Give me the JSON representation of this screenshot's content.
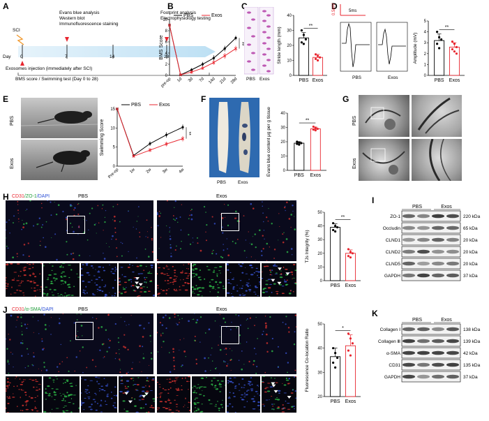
{
  "panels": {
    "A": {
      "letter": "A",
      "sci": "SCI",
      "day_label": "Day",
      "days": [
        "0",
        "7",
        "14",
        "28"
      ],
      "events_day7": [
        "Evans blue analysis",
        "Western blot",
        "Immunofluorescence staining"
      ],
      "events_day28": [
        "Footprint analysis",
        "Electrophysiology testing"
      ],
      "injection": "Exosomes injection (immediately after SCI)",
      "tests": "BMS score / Swimming test (Day 0 to 28)"
    },
    "B": {
      "letter": "B",
      "sig": "**"
    },
    "C": {
      "letter": "C",
      "sig": "**",
      "prints": [
        "PBS",
        "Exos"
      ]
    },
    "D": {
      "letter": "D",
      "sig": "**",
      "scale_v": "0.5mV",
      "scale_t": "5ms",
      "traces": [
        "PBS",
        "Exos"
      ]
    },
    "E": {
      "letter": "E",
      "sig": "**",
      "rows": [
        "PBS",
        "Exos"
      ]
    },
    "F": {
      "letter": "F",
      "sig": "**",
      "cords": [
        "PBS",
        "Exos"
      ]
    },
    "G": {
      "letter": "G",
      "rows": [
        "PBS",
        "Exos"
      ]
    },
    "H": {
      "letter": "H",
      "stain": {
        "a": "CD31",
        "b": "/ZO-1",
        "c": "/DAPI"
      },
      "groups": [
        "PBS",
        "Exos"
      ],
      "sig": "**"
    },
    "I": {
      "letter": "I",
      "groups": [
        "PBS",
        "Exos"
      ],
      "rows": [
        {
          "name": "ZO-1",
          "kda": "220 kDa"
        },
        {
          "name": "Occludin",
          "kda": "65 kDa"
        },
        {
          "name": "CLND1",
          "kda": "20 kDa"
        },
        {
          "name": "CLND2",
          "kda": "20 kDa"
        },
        {
          "name": "CLND5",
          "kda": "20 kDa"
        },
        {
          "name": "GAPDH",
          "kda": "37 kDa"
        }
      ]
    },
    "J": {
      "letter": "J",
      "stain": {
        "a": "CD31",
        "b": "/α-SMA",
        "c": "/DAPI"
      },
      "groups": [
        "PBS",
        "Exos"
      ],
      "sig": "*"
    },
    "K": {
      "letter": "K",
      "groups": [
        "PBS",
        "Exos"
      ],
      "rows": [
        {
          "name": "Collagen Ⅰ",
          "kda": "138 kDa"
        },
        {
          "name": "Collagen Ⅲ",
          "kda": "139 kDa"
        },
        {
          "name": "α-SMA",
          "kda": "42 kDa"
        },
        {
          "name": "CD31",
          "kda": "135 kDa"
        },
        {
          "name": "GAPDH",
          "kda": "37 kDa"
        }
      ]
    }
  },
  "chart_data": [
    {
      "id": "B",
      "type": "line",
      "ylabel": "BMS Score",
      "xlabel": "",
      "categories": [
        "pre-op",
        "1d",
        "3d",
        "7d",
        "14d",
        "21d",
        "28d"
      ],
      "ylim": [
        0,
        10
      ],
      "yticks": [
        0,
        2,
        4,
        6,
        8,
        10
      ],
      "legend_placement": "top",
      "series": [
        {
          "name": "PBS",
          "color": "#000000",
          "values": [
            9,
            0.1,
            1.0,
            2.0,
            3.1,
            4.8,
            6.7
          ],
          "err": [
            0,
            0.1,
            0.3,
            0.4,
            0.5,
            0.5,
            0.4
          ]
        },
        {
          "name": "Exos",
          "color": "#e8262f",
          "values": [
            9,
            0.1,
            0.6,
            1.3,
            2.3,
            3.5,
            4.8
          ],
          "err": [
            0,
            0.1,
            0.3,
            0.3,
            0.4,
            0.5,
            0.5
          ]
        }
      ]
    },
    {
      "id": "C",
      "type": "scatter",
      "ylabel": "Stride length (mm)",
      "categories": [
        "PBS",
        "Exos"
      ],
      "ylim": [
        0,
        40
      ],
      "yticks": [
        0,
        10,
        20,
        30,
        40
      ],
      "series": [
        {
          "name": "PBS",
          "color": "#000000",
          "mean": 25,
          "sd": 3.5,
          "points": [
            30,
            27,
            24,
            22,
            21
          ]
        },
        {
          "name": "Exos",
          "color": "#e8262f",
          "mean": 12,
          "sd": 2,
          "points": [
            14,
            13,
            12,
            11,
            10
          ]
        }
      ]
    },
    {
      "id": "D",
      "type": "scatter",
      "ylabel": "Amplitude (mV)",
      "categories": [
        "PBS",
        "Exos"
      ],
      "ylim": [
        0,
        5
      ],
      "yticks": [
        0,
        1,
        2,
        3,
        4,
        5
      ],
      "series": [
        {
          "name": "PBS",
          "color": "#000000",
          "mean": 3.2,
          "sd": 0.6,
          "points": [
            4.0,
            3.5,
            3.3,
            2.9,
            2.5
          ]
        },
        {
          "name": "Exos",
          "color": "#e8262f",
          "mean": 2.6,
          "sd": 0.4,
          "points": [
            3.1,
            2.9,
            2.6,
            2.4,
            2.2,
            2.0
          ]
        }
      ]
    },
    {
      "id": "E",
      "type": "line",
      "ylabel": "Swimming Score",
      "xlabel": "",
      "categories": [
        "Pre-op",
        "1w",
        "2w",
        "3w",
        "4w"
      ],
      "ylim": [
        0,
        15
      ],
      "yticks": [
        0,
        5,
        10,
        15
      ],
      "legend_placement": "top",
      "series": [
        {
          "name": "PBS",
          "color": "#000000",
          "values": [
            15,
            2.8,
            5.9,
            8.2,
            10.2
          ],
          "err": [
            0,
            0.3,
            0.6,
            0.7,
            0.7
          ]
        },
        {
          "name": "Exos",
          "color": "#e8262f",
          "values": [
            15,
            2.6,
            4.2,
            5.8,
            7.2
          ],
          "err": [
            0,
            0.3,
            0.5,
            0.6,
            0.7
          ]
        }
      ]
    },
    {
      "id": "F",
      "type": "scatter",
      "ylabel": "Evans blue content μg per g tissue",
      "categories": [
        "PBS",
        "Exos"
      ],
      "ylim": [
        0,
        40
      ],
      "yticks": [
        0,
        10,
        20,
        30,
        40
      ],
      "series": [
        {
          "name": "PBS",
          "color": "#000000",
          "mean": 19,
          "sd": 1,
          "points": [
            20,
            19.5,
            19,
            18.5,
            18
          ]
        },
        {
          "name": "Exos",
          "color": "#e8262f",
          "mean": 29,
          "sd": 1.2,
          "points": [
            30.5,
            29.8,
            29,
            28.5,
            28
          ]
        }
      ]
    },
    {
      "id": "H",
      "type": "scatter",
      "ylabel": "TJs Integrity (%)",
      "categories": [
        "PBS",
        "Exos"
      ],
      "ylim": [
        0,
        50
      ],
      "yticks": [
        0,
        10,
        20,
        30,
        40,
        50
      ],
      "series": [
        {
          "name": "PBS",
          "color": "#000000",
          "mean": 39,
          "sd": 2.5,
          "points": [
            42,
            40,
            39,
            37,
            36
          ]
        },
        {
          "name": "Exos",
          "color": "#e8262f",
          "mean": 20,
          "sd": 2.5,
          "points": [
            23,
            21,
            20,
            18,
            17
          ]
        }
      ]
    },
    {
      "id": "J",
      "type": "scatter",
      "ylabel": "Fluorescence Co-location Ratio",
      "categories": [
        "PBS",
        "Exos"
      ],
      "ylim": [
        20,
        50
      ],
      "yticks": [
        20,
        30,
        40,
        50
      ],
      "series": [
        {
          "name": "PBS",
          "color": "#000000",
          "mean": 36.5,
          "sd": 3.5,
          "points": [
            40,
            38,
            36,
            34,
            32
          ]
        },
        {
          "name": "Exos",
          "color": "#e8262f",
          "mean": 41,
          "sd": 4.5,
          "points": [
            46,
            44,
            42,
            39,
            37
          ]
        }
      ]
    }
  ]
}
